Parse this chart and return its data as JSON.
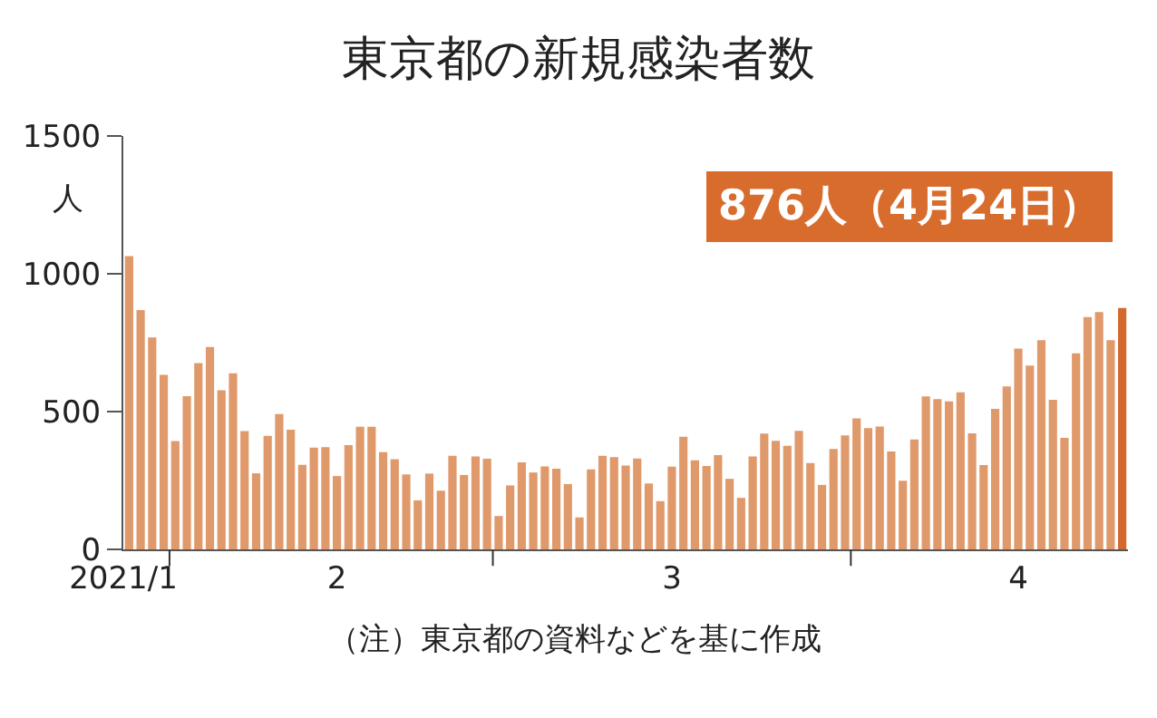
{
  "chart_data": {
    "type": "bar",
    "title": "東京都の新規感染者数",
    "ylabel": "人",
    "x": [
      "2021-01-28",
      "2021-01-29",
      "2021-01-30",
      "2021-01-31",
      "2021-02-01",
      "2021-02-02",
      "2021-02-03",
      "2021-02-04",
      "2021-02-05",
      "2021-02-06",
      "2021-02-07",
      "2021-02-08",
      "2021-02-09",
      "2021-02-10",
      "2021-02-11",
      "2021-02-12",
      "2021-02-13",
      "2021-02-14",
      "2021-02-15",
      "2021-02-16",
      "2021-02-17",
      "2021-02-18",
      "2021-02-19",
      "2021-02-20",
      "2021-02-21",
      "2021-02-22",
      "2021-02-23",
      "2021-02-24",
      "2021-02-25",
      "2021-02-26",
      "2021-02-27",
      "2021-02-28",
      "2021-03-01",
      "2021-03-02",
      "2021-03-03",
      "2021-03-04",
      "2021-03-05",
      "2021-03-06",
      "2021-03-07",
      "2021-03-08",
      "2021-03-09",
      "2021-03-10",
      "2021-03-11",
      "2021-03-12",
      "2021-03-13",
      "2021-03-14",
      "2021-03-15",
      "2021-03-16",
      "2021-03-17",
      "2021-03-18",
      "2021-03-19",
      "2021-03-20",
      "2021-03-21",
      "2021-03-22",
      "2021-03-23",
      "2021-03-24",
      "2021-03-25",
      "2021-03-26",
      "2021-03-27",
      "2021-03-28",
      "2021-03-29",
      "2021-03-30",
      "2021-03-31",
      "2021-04-01",
      "2021-04-02",
      "2021-04-03",
      "2021-04-04",
      "2021-04-05",
      "2021-04-06",
      "2021-04-07",
      "2021-04-08",
      "2021-04-09",
      "2021-04-10",
      "2021-04-11",
      "2021-04-12",
      "2021-04-13",
      "2021-04-14",
      "2021-04-15",
      "2021-04-16",
      "2021-04-17",
      "2021-04-18",
      "2021-04-19",
      "2021-04-20",
      "2021-04-21",
      "2021-04-22",
      "2021-04-23",
      "2021-04-24"
    ],
    "values": [
      1064,
      868,
      769,
      633,
      393,
      556,
      676,
      734,
      577,
      639,
      429,
      276,
      412,
      491,
      434,
      307,
      369,
      371,
      266,
      378,
      445,
      445,
      353,
      327,
      272,
      178,
      275,
      213,
      340,
      270,
      337,
      329,
      121,
      232,
      316,
      279,
      301,
      293,
      237,
      116,
      290,
      340,
      335,
      304,
      330,
      239,
      175,
      300,
      409,
      323,
      303,
      342,
      256,
      187,
      337,
      420,
      394,
      376,
      430,
      313,
      234,
      364,
      414,
      475,
      440,
      446,
      355,
      249,
      399,
      555,
      545,
      537,
      570,
      421,
      306,
      510,
      591,
      729,
      667,
      759,
      543,
      405,
      711,
      843,
      861,
      759,
      876
    ],
    "colors": [
      "#e0996a",
      "#e0996a",
      "#e0996a",
      "#e0996a",
      "#e0996a",
      "#e0996a",
      "#e0996a",
      "#e0996a",
      "#e0996a",
      "#e0996a",
      "#e0996a",
      "#e0996a",
      "#e0996a",
      "#e0996a",
      "#e0996a",
      "#e0996a",
      "#e0996a",
      "#e0996a",
      "#e0996a",
      "#e0996a",
      "#e0996a",
      "#e0996a",
      "#e0996a",
      "#e0996a",
      "#e0996a",
      "#e0996a",
      "#e0996a",
      "#e0996a",
      "#e0996a",
      "#e0996a",
      "#e0996a",
      "#e0996a",
      "#e0996a",
      "#e0996a",
      "#e0996a",
      "#e0996a",
      "#e0996a",
      "#e0996a",
      "#e0996a",
      "#e0996a",
      "#e0996a",
      "#e0996a",
      "#e0996a",
      "#e0996a",
      "#e0996a",
      "#e0996a",
      "#e0996a",
      "#e0996a",
      "#e0996a",
      "#e0996a",
      "#e0996a",
      "#e0996a",
      "#e0996a",
      "#e0996a",
      "#e0996a",
      "#e0996a",
      "#e0996a",
      "#e0996a",
      "#e0996a",
      "#e0996a",
      "#e0996a",
      "#e0996a",
      "#e0996a",
      "#e0996a",
      "#e0996a",
      "#e0996a",
      "#e0996a",
      "#e0996a",
      "#e0996a",
      "#e0996a",
      "#e0996a",
      "#e0996a",
      "#e0996a",
      "#e0996a",
      "#e0996a",
      "#e0996a",
      "#e0996a",
      "#e0996a",
      "#e0996a",
      "#e0996a",
      "#e0996a",
      "#e0996a",
      "#e0996a",
      "#e0996a",
      "#e0996a",
      "#e0996a",
      "#d4692e"
    ],
    "xlim": [
      "2021-01-27T12:00",
      "2021-04-24T12:00"
    ],
    "xticks": [
      {
        "value": "2021-01-27T12:00",
        "label": "2021/1"
      },
      {
        "value": "2021-01-31T12:00",
        "label": null
      },
      {
        "value": "2021-02-15",
        "label": "2"
      },
      {
        "value": "2021-02-28T12:00",
        "label": null
      },
      {
        "value": "2021-03-16",
        "label": "3"
      },
      {
        "value": "2021-03-31T12:00",
        "label": null
      },
      {
        "value": "2021-04-15",
        "label": "4"
      }
    ],
    "ylim": [
      0,
      1500
    ],
    "yticks": [
      0,
      500,
      1000,
      1500
    ],
    "annotations": [
      "876人（4月24日）",
      "（注）東京都の資料などを基に作成"
    ]
  }
}
